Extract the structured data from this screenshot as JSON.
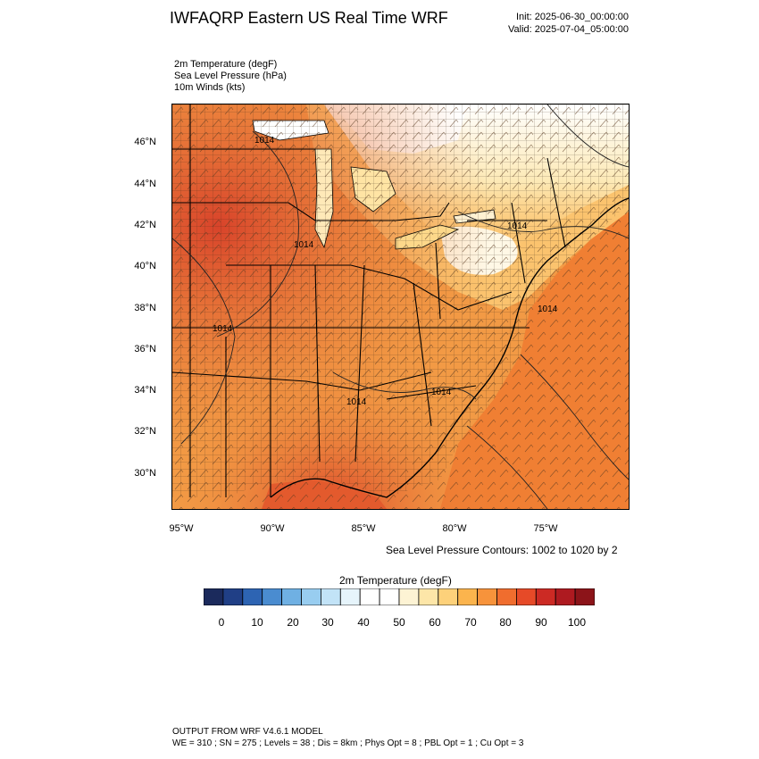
{
  "header": {
    "title": "IWFAQRP Eastern US Real Time WRF",
    "init": "Init: 2025-06-30_00:00:00",
    "valid": "Valid: 2025-07-04_05:00:00"
  },
  "fields": [
    "2m Temperature   (degF)",
    "Sea Level Pressure   (hPa)",
    "10m Winds   (kts)"
  ],
  "map": {
    "lat_labels": [
      "46°N",
      "44°N",
      "42°N",
      "40°N",
      "38°N",
      "36°N",
      "34°N",
      "32°N",
      "30°N"
    ],
    "lon_labels": [
      "95°W",
      "90°W",
      "85°W",
      "80°W",
      "75°W"
    ],
    "pressure_labels": [
      "1014",
      "1014",
      "1014",
      "1014",
      "1014",
      "1014",
      "1014"
    ]
  },
  "contour_note": "Sea Level Pressure Contours: 1002 to 1020 by 2",
  "colorbar": {
    "title": "2m Temperature  (degF)",
    "labels": [
      "0",
      "10",
      "20",
      "30",
      "40",
      "50",
      "60",
      "70",
      "80",
      "90",
      "100"
    ],
    "colors": [
      "#1b2a5c",
      "#203f86",
      "#2d64b3",
      "#4a8cd0",
      "#6fb0e3",
      "#98cdf0",
      "#c2e3f7",
      "#e6f4fb",
      "#ffffff",
      "#ffffff",
      "#fdf3d4",
      "#fde6a8",
      "#fdd17a",
      "#fbb44d",
      "#f7933b",
      "#f06d2e",
      "#e64a28",
      "#cc2a24",
      "#ae1a20",
      "#8c1419"
    ]
  },
  "footer": {
    "line1": "OUTPUT FROM WRF V4.6.1 MODEL",
    "line2": "WE = 310 ; SN = 275 ; Levels = 38 ; Dis = 8km ; Phys Opt = 8 ; PBL Opt = 1 ; Cu Opt = 3"
  }
}
